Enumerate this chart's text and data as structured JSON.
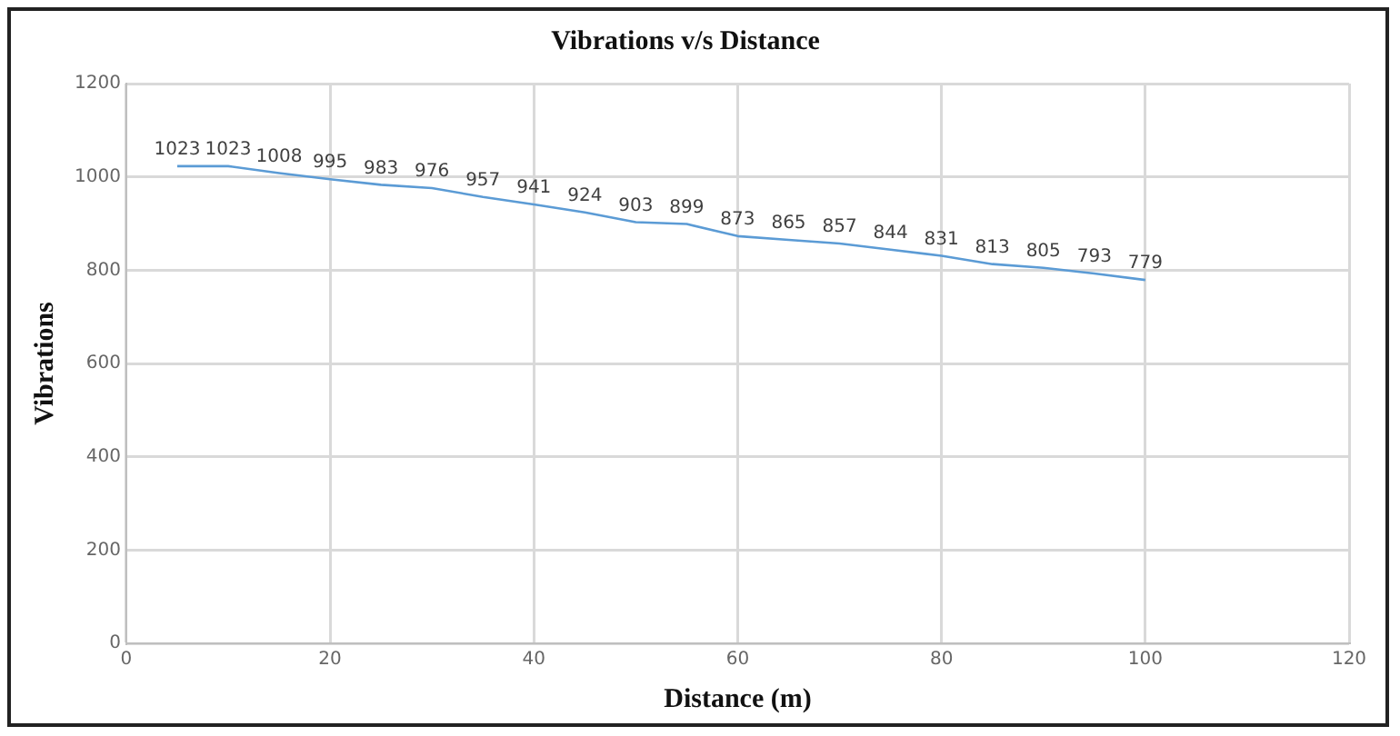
{
  "chart_data": {
    "type": "line",
    "title": "Vibrations v/s Distance",
    "xlabel": "Distance (m)",
    "ylabel": "Vibrations",
    "x": [
      5,
      10,
      15,
      20,
      25,
      30,
      35,
      40,
      45,
      50,
      55,
      60,
      65,
      70,
      75,
      80,
      85,
      90,
      95,
      100
    ],
    "series": [
      {
        "color": "#5b9bd5",
        "values": [
          1023,
          1023,
          1008,
          995,
          983,
          976,
          957,
          941,
          924,
          903,
          899,
          873,
          865,
          857,
          844,
          831,
          813,
          805,
          793,
          779
        ]
      }
    ],
    "xlim": [
      0,
      120
    ],
    "xticks": [
      0,
      20,
      40,
      60,
      80,
      100,
      120
    ],
    "ylim": [
      0,
      1200
    ],
    "yticks": [
      0,
      200,
      400,
      600,
      800,
      1000,
      1200
    ],
    "grid": true,
    "legend": false,
    "marker": "none",
    "line_style": "solid",
    "data_labels": true
  }
}
